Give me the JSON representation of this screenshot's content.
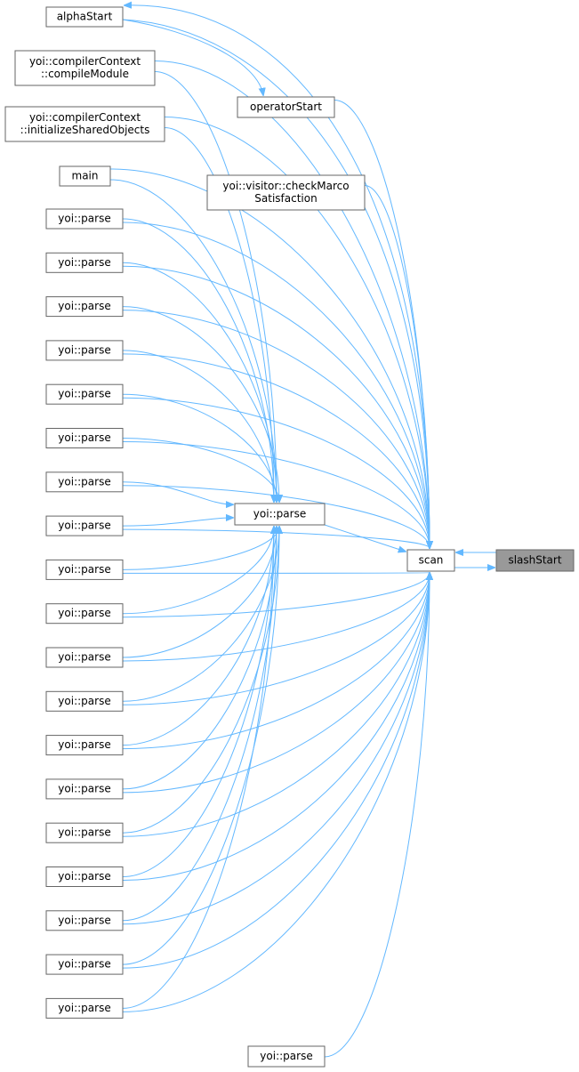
{
  "nodes": [
    {
      "lines": [
        "alphaStart"
      ]
    },
    {
      "lines": [
        "yoi::compilerContext",
        "::compileModule"
      ]
    },
    {
      "lines": [
        "operatorStart"
      ]
    },
    {
      "lines": [
        "yoi::compilerContext",
        "::initializeSharedObjects"
      ]
    },
    {
      "lines": [
        "main"
      ]
    },
    {
      "lines": [
        "yoi::visitor::checkMarco",
        "Satisfaction"
      ]
    },
    {
      "lines": [
        "yoi::parse"
      ]
    },
    {
      "lines": [
        "yoi::parse"
      ]
    },
    {
      "lines": [
        "yoi::parse"
      ]
    },
    {
      "lines": [
        "yoi::parse"
      ]
    },
    {
      "lines": [
        "yoi::parse"
      ]
    },
    {
      "lines": [
        "yoi::parse"
      ]
    },
    {
      "lines": [
        "yoi::parse"
      ]
    },
    {
      "lines": [
        "yoi::parse"
      ]
    },
    {
      "lines": [
        "yoi::parse"
      ]
    },
    {
      "lines": [
        "yoi::parse"
      ]
    },
    {
      "lines": [
        "yoi::parse"
      ]
    },
    {
      "lines": [
        "yoi::parse"
      ]
    },
    {
      "lines": [
        "yoi::parse"
      ]
    },
    {
      "lines": [
        "yoi::parse"
      ]
    },
    {
      "lines": [
        "yoi::parse"
      ]
    },
    {
      "lines": [
        "yoi::parse"
      ]
    },
    {
      "lines": [
        "yoi::parse"
      ]
    },
    {
      "lines": [
        "yoi::parse"
      ]
    },
    {
      "lines": [
        "yoi::parse"
      ]
    },
    {
      "lines": [
        "yoi::parse"
      ]
    },
    {
      "lines": [
        "scan"
      ]
    },
    {
      "lines": [
        "slashStart"
      ]
    },
    {
      "lines": [
        "yoi::parse"
      ]
    }
  ]
}
